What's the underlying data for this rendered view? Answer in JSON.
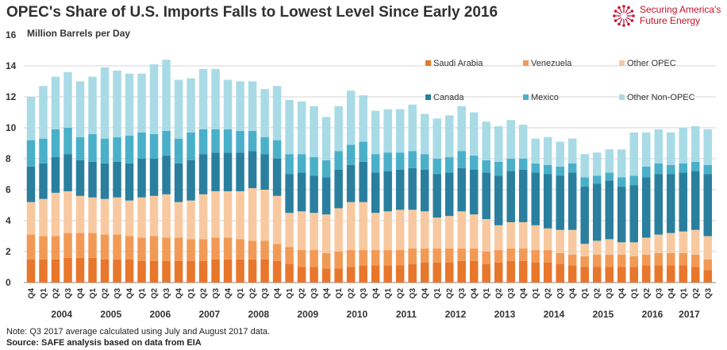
{
  "header": {
    "title": "OPEC's Share of U.S. Imports Falls to Lowest Level Since Early 2016",
    "logo_line1": "Securing America's",
    "logo_line2": "Future Energy"
  },
  "footer": {
    "note": "Note: Q3 2017 average calculated using July and August 2017 data.",
    "source": "Source: SAFE analysis based on data from EIA"
  },
  "colors": {
    "Saudi Arabia": "#e8762b",
    "Venezuela": "#f29a55",
    "Other OPEC": "#f8c9a0",
    "Canada": "#2a7f9e",
    "Mexico": "#4ab0c9",
    "Other Non-OPEC": "#a9dbe6"
  },
  "chart_data": {
    "type": "bar",
    "stacked": true,
    "title": "OPEC's Share of U.S. Imports Falls to Lowest Level Since Early 2016",
    "ylabel": "Million Barrels per Day",
    "ylim": [
      0,
      16
    ],
    "yticks": [
      0,
      2,
      4,
      6,
      8,
      10,
      12,
      14,
      16
    ],
    "grid": true,
    "legend_position": "top-right",
    "categories": [
      "Q4",
      "Q1",
      "Q2",
      "Q3",
      "Q4",
      "Q1",
      "Q2",
      "Q3",
      "Q4",
      "Q1",
      "Q2",
      "Q3",
      "Q4",
      "Q1",
      "Q2",
      "Q3",
      "Q4",
      "Q1",
      "Q2",
      "Q3",
      "Q4",
      "Q1",
      "Q2",
      "Q3",
      "Q4",
      "Q1",
      "Q2",
      "Q3",
      "Q4",
      "Q1",
      "Q2",
      "Q3",
      "Q4",
      "Q1",
      "Q2",
      "Q3",
      "Q4",
      "Q1",
      "Q2",
      "Q3",
      "Q4",
      "Q1",
      "Q2",
      "Q3",
      "Q4",
      "Q1",
      "Q2",
      "Q3",
      "Q4",
      "Q1",
      "Q2",
      "Q3",
      "Q4",
      "Q1",
      "Q2",
      "Q3"
    ],
    "year_labels": [
      {
        "label": "2004",
        "index": 2.5
      },
      {
        "label": "2005",
        "index": 6.5
      },
      {
        "label": "2006",
        "index": 10.5
      },
      {
        "label": "2007",
        "index": 14.5
      },
      {
        "label": "2008",
        "index": 18.5
      },
      {
        "label": "2009",
        "index": 22.5
      },
      {
        "label": "2010",
        "index": 26.5
      },
      {
        "label": "2011",
        "index": 30.5
      },
      {
        "label": "2012",
        "index": 34.5
      },
      {
        "label": "2013",
        "index": 38.5
      },
      {
        "label": "2014",
        "index": 42.5
      },
      {
        "label": "2015",
        "index": 46.5
      },
      {
        "label": "2016",
        "index": 50.5
      },
      {
        "label": "2017",
        "index": 53.5
      }
    ],
    "series": [
      {
        "name": "Saudi Arabia",
        "values": [
          1.5,
          1.5,
          1.5,
          1.6,
          1.6,
          1.6,
          1.5,
          1.5,
          1.5,
          1.4,
          1.4,
          1.4,
          1.4,
          1.4,
          1.4,
          1.5,
          1.5,
          1.5,
          1.5,
          1.5,
          1.4,
          1.2,
          1.0,
          1.0,
          0.9,
          0.9,
          1.0,
          1.1,
          1.1,
          1.1,
          1.1,
          1.2,
          1.3,
          1.3,
          1.3,
          1.4,
          1.4,
          1.2,
          1.3,
          1.4,
          1.4,
          1.3,
          1.3,
          1.2,
          1.1,
          1.0,
          1.0,
          1.0,
          1.0,
          1.0,
          1.1,
          1.1,
          1.1,
          1.1,
          1.0,
          0.8
        ]
      },
      {
        "name": "Venezuela",
        "values": [
          1.6,
          1.5,
          1.5,
          1.6,
          1.6,
          1.6,
          1.6,
          1.6,
          1.5,
          1.5,
          1.6,
          1.5,
          1.5,
          1.4,
          1.4,
          1.4,
          1.4,
          1.3,
          1.2,
          1.2,
          1.1,
          1.1,
          1.1,
          1.1,
          1.0,
          1.1,
          1.1,
          1.0,
          1.0,
          1.0,
          1.0,
          1.0,
          0.9,
          0.9,
          0.9,
          0.8,
          0.8,
          0.8,
          0.8,
          0.8,
          0.8,
          0.8,
          0.8,
          0.7,
          0.7,
          0.7,
          0.8,
          0.8,
          0.8,
          0.7,
          0.7,
          0.8,
          0.8,
          0.8,
          0.8,
          0.7
        ]
      },
      {
        "name": "Other OPEC",
        "values": [
          2.1,
          2.4,
          2.8,
          2.7,
          2.4,
          2.3,
          2.3,
          2.4,
          2.3,
          2.6,
          2.6,
          2.8,
          2.3,
          2.5,
          2.9,
          3.0,
          3.0,
          3.1,
          3.4,
          3.3,
          3.1,
          2.2,
          2.5,
          2.4,
          2.5,
          2.8,
          3.1,
          3.1,
          2.4,
          2.5,
          2.6,
          2.5,
          2.4,
          2.0,
          2.1,
          2.4,
          2.2,
          2.1,
          1.6,
          1.7,
          1.7,
          1.6,
          1.4,
          1.5,
          1.6,
          0.8,
          0.9,
          1.0,
          0.8,
          0.9,
          1.1,
          1.2,
          1.3,
          1.4,
          1.6,
          1.5
        ]
      },
      {
        "name": "Canada",
        "values": [
          2.3,
          2.3,
          2.3,
          2.4,
          2.3,
          2.3,
          2.3,
          2.3,
          2.4,
          2.5,
          2.4,
          2.5,
          2.5,
          2.6,
          2.6,
          2.5,
          2.5,
          2.5,
          2.4,
          2.3,
          2.4,
          2.5,
          2.5,
          2.4,
          2.4,
          2.5,
          2.4,
          2.6,
          2.6,
          2.6,
          2.6,
          2.7,
          2.7,
          2.8,
          2.8,
          2.8,
          2.9,
          3.0,
          3.2,
          3.3,
          3.4,
          3.4,
          3.5,
          3.5,
          3.7,
          3.7,
          3.7,
          3.8,
          3.6,
          3.7,
          3.9,
          3.9,
          3.8,
          3.8,
          3.8,
          4.0
        ]
      },
      {
        "name": "Mexico",
        "values": [
          1.7,
          1.6,
          1.8,
          1.7,
          1.5,
          1.8,
          1.6,
          1.6,
          1.8,
          1.7,
          1.6,
          1.6,
          1.6,
          1.8,
          1.6,
          1.5,
          1.5,
          1.4,
          1.3,
          1.1,
          1.2,
          1.3,
          1.2,
          1.2,
          1.1,
          1.2,
          1.3,
          1.3,
          1.2,
          1.2,
          1.1,
          1.1,
          1.0,
          1.0,
          1.0,
          1.1,
          0.9,
          0.8,
          0.9,
          0.8,
          0.7,
          0.6,
          0.6,
          0.6,
          0.6,
          0.6,
          0.5,
          0.5,
          0.6,
          0.6,
          0.7,
          0.7,
          0.6,
          0.6,
          0.6,
          0.6
        ]
      },
      {
        "name": "Other Non-OPEC",
        "values": [
          2.8,
          3.4,
          3.4,
          3.6,
          3.6,
          3.7,
          4.6,
          4.3,
          4.0,
          3.8,
          4.5,
          4.6,
          3.8,
          3.5,
          3.9,
          3.9,
          3.2,
          3.2,
          3.2,
          3.1,
          3.5,
          3.5,
          3.4,
          3.3,
          2.8,
          2.9,
          3.5,
          3.0,
          2.8,
          2.8,
          2.8,
          3.0,
          2.6,
          2.6,
          2.7,
          2.9,
          2.8,
          2.5,
          2.3,
          2.5,
          2.2,
          1.6,
          1.8,
          1.6,
          1.6,
          1.5,
          1.5,
          1.5,
          1.8,
          2.8,
          2.2,
          2.2,
          2.1,
          2.3,
          2.3,
          2.3
        ]
      }
    ],
    "annotations": [
      "Note: Q3 2017 average calculated using July and August 2017 data."
    ]
  }
}
